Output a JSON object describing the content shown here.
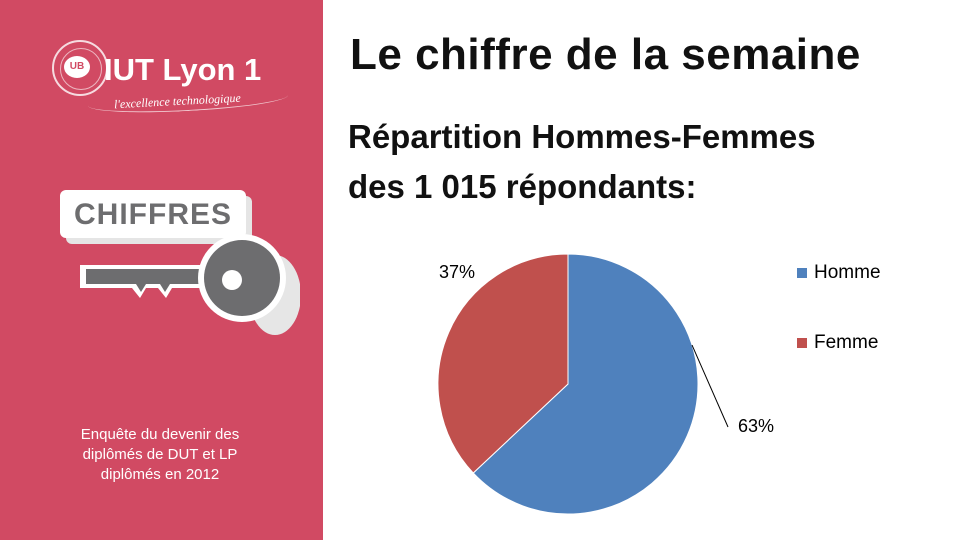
{
  "sidebar": {
    "logo_name": "IUT Lyon 1",
    "logo_tagline": "l'excellence technologique",
    "logo_mark": "UB",
    "badge_label": "CHIFFRES",
    "survey_lines": [
      "Enquête du devenir des",
      "diplômés de DUT et LP",
      "diplômés en 2012"
    ]
  },
  "header": {
    "title": "Le chiffre de la semaine",
    "subtitle_line1": "Répartition Hommes-Femmes",
    "subtitle_line2": "des 1 015 répondants:"
  },
  "colors": {
    "sidebar_bg": "#d14a63",
    "homme": "#4f81bd",
    "femme": "#c0504d",
    "key_gray": "#6d6d6f"
  },
  "chart_data": {
    "type": "pie",
    "title": "",
    "slices": [
      {
        "label": "Homme",
        "value": 63,
        "display": "63%",
        "color": "#4f81bd"
      },
      {
        "label": "Femme",
        "value": 37,
        "display": "37%",
        "color": "#c0504d"
      }
    ],
    "legend_position": "right",
    "start_angle": "12 o'clock",
    "direction": "clockwise"
  }
}
